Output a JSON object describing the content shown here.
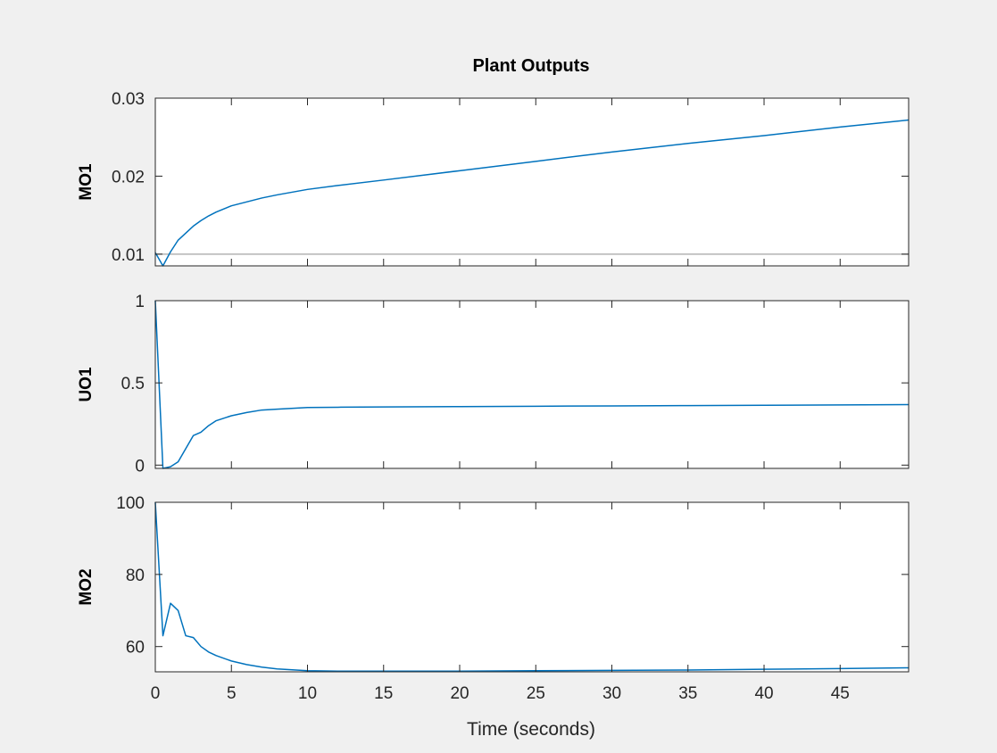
{
  "figure": {
    "title": "Plant Outputs",
    "xlabel": "Time (seconds)",
    "background": "#f0f0f0",
    "axes_color": "#262626",
    "line_color": "#0072bd",
    "ref_line_color": "#b3b3b3"
  },
  "chart_data": [
    {
      "type": "line",
      "ylabel": "MO1",
      "xlim": [
        0,
        49.5
      ],
      "ylim": [
        0.0085,
        0.03
      ],
      "xticks": [
        0,
        5,
        10,
        15,
        20,
        25,
        30,
        35,
        40,
        45
      ],
      "yticks": [
        0.01,
        0.02,
        0.03
      ],
      "yticklabels": [
        "0.01",
        "0.02",
        "0.03"
      ],
      "show_xticklabels": false,
      "series": [
        {
          "x": [
            0,
            0.5,
            1,
            1.5,
            2,
            2.5,
            3,
            3.5,
            4,
            5,
            6,
            7,
            8,
            10,
            12,
            15,
            20,
            25,
            30,
            35,
            40,
            45,
            49.5
          ],
          "y": [
            0.0102,
            0.0085,
            0.0103,
            0.0118,
            0.0127,
            0.0136,
            0.0143,
            0.0149,
            0.0154,
            0.0162,
            0.0167,
            0.0172,
            0.0176,
            0.0183,
            0.0188,
            0.0195,
            0.0207,
            0.0219,
            0.0231,
            0.0242,
            0.0252,
            0.0263,
            0.0272
          ]
        }
      ],
      "reference": {
        "y": 0.01
      }
    },
    {
      "type": "line",
      "ylabel": "UO1",
      "xlim": [
        0,
        49.5
      ],
      "ylim": [
        -0.02,
        1.0
      ],
      "xticks": [
        0,
        5,
        10,
        15,
        20,
        25,
        30,
        35,
        40,
        45
      ],
      "yticks": [
        0,
        0.5,
        1
      ],
      "yticklabels": [
        "0",
        "0.5",
        "1"
      ],
      "show_xticklabels": false,
      "series": [
        {
          "x": [
            0,
            0.5,
            1,
            1.5,
            2,
            2.5,
            3,
            3.5,
            4,
            5,
            6,
            7,
            8,
            10,
            12,
            15,
            20,
            25,
            30,
            35,
            40,
            45,
            49.5
          ],
          "y": [
            1.0,
            -0.02,
            -0.01,
            0.02,
            0.1,
            0.18,
            0.2,
            0.24,
            0.27,
            0.3,
            0.32,
            0.335,
            0.34,
            0.35,
            0.352,
            0.354,
            0.356,
            0.358,
            0.36,
            0.362,
            0.364,
            0.366,
            0.368
          ]
        }
      ]
    },
    {
      "type": "line",
      "ylabel": "MO2",
      "xlim": [
        0,
        49.5
      ],
      "ylim": [
        53,
        100
      ],
      "xticks": [
        0,
        5,
        10,
        15,
        20,
        25,
        30,
        35,
        40,
        45
      ],
      "yticks": [
        60,
        80,
        100
      ],
      "yticklabels": [
        "60",
        "80",
        "100"
      ],
      "xticklabels": [
        "0",
        "5",
        "10",
        "15",
        "20",
        "25",
        "30",
        "35",
        "40",
        "45"
      ],
      "show_xticklabels": true,
      "series": [
        {
          "x": [
            0,
            0.5,
            1,
            1.5,
            2,
            2.5,
            3,
            3.5,
            4,
            5,
            6,
            7,
            8,
            10,
            12,
            15,
            20,
            25,
            30,
            35,
            40,
            45,
            49.5
          ],
          "y": [
            100,
            63,
            72,
            70,
            63,
            62.5,
            60,
            58.5,
            57.5,
            56,
            55,
            54.3,
            53.8,
            53.3,
            53.2,
            53.2,
            53.2,
            53.3,
            53.4,
            53.5,
            53.7,
            53.9,
            54.1
          ]
        }
      ]
    }
  ]
}
